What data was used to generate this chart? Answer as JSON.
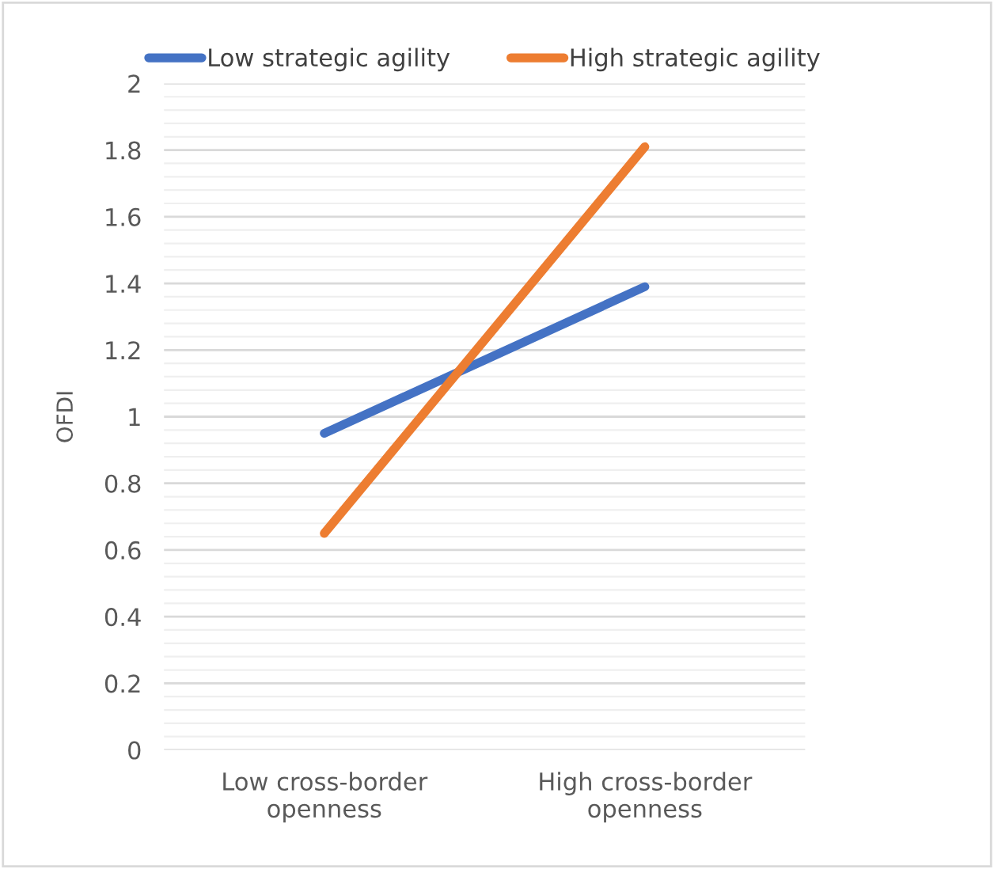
{
  "chart_data": {
    "type": "line",
    "ylabel": "OFDI",
    "categories": [
      "Low cross-border\nopenness",
      "High cross-border\nopenness"
    ],
    "series": [
      {
        "name": "Low strategic agility",
        "color": "#4472c4",
        "values": [
          0.95,
          1.39
        ]
      },
      {
        "name": "High strategic agility",
        "color": "#ed7d31",
        "values": [
          0.65,
          1.81
        ]
      }
    ],
    "ylim": [
      0,
      2
    ],
    "yticks": [
      0,
      0.2,
      0.4,
      0.6,
      0.8,
      1,
      1.2,
      1.4,
      1.6,
      1.8,
      2
    ],
    "grid": "y",
    "legend": "top",
    "marker": "none",
    "line_style": "solid"
  }
}
